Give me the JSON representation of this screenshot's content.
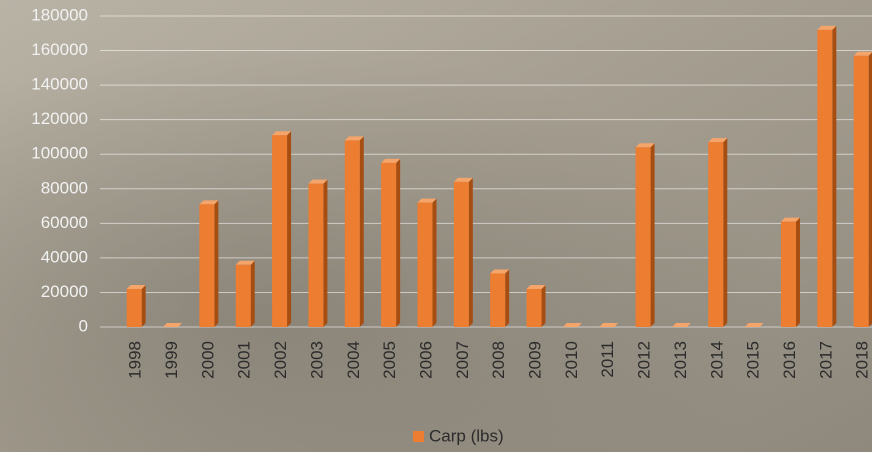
{
  "chart_data": {
    "type": "bar",
    "categories": [
      "1998",
      "1999",
      "2000",
      "2001",
      "2002",
      "2003",
      "2004",
      "2005",
      "2006",
      "2007",
      "2008",
      "2009",
      "2010",
      "2011",
      "2012",
      "2013",
      "2014",
      "2015",
      "2016",
      "2017",
      "2018"
    ],
    "series": [
      {
        "name": "Carp (lbs)",
        "color": "#ed7d31",
        "values": [
          22000,
          0,
          71000,
          36000,
          111000,
          83000,
          108000,
          95000,
          72000,
          84000,
          31000,
          22000,
          0,
          0,
          104000,
          0,
          107000,
          0,
          61000,
          172000,
          157000
        ]
      }
    ],
    "ylim": [
      0,
      180000
    ],
    "yticks": [
      0,
      20000,
      40000,
      60000,
      80000,
      100000,
      120000,
      140000,
      160000,
      180000
    ],
    "grid": true,
    "legend": "bottom"
  }
}
